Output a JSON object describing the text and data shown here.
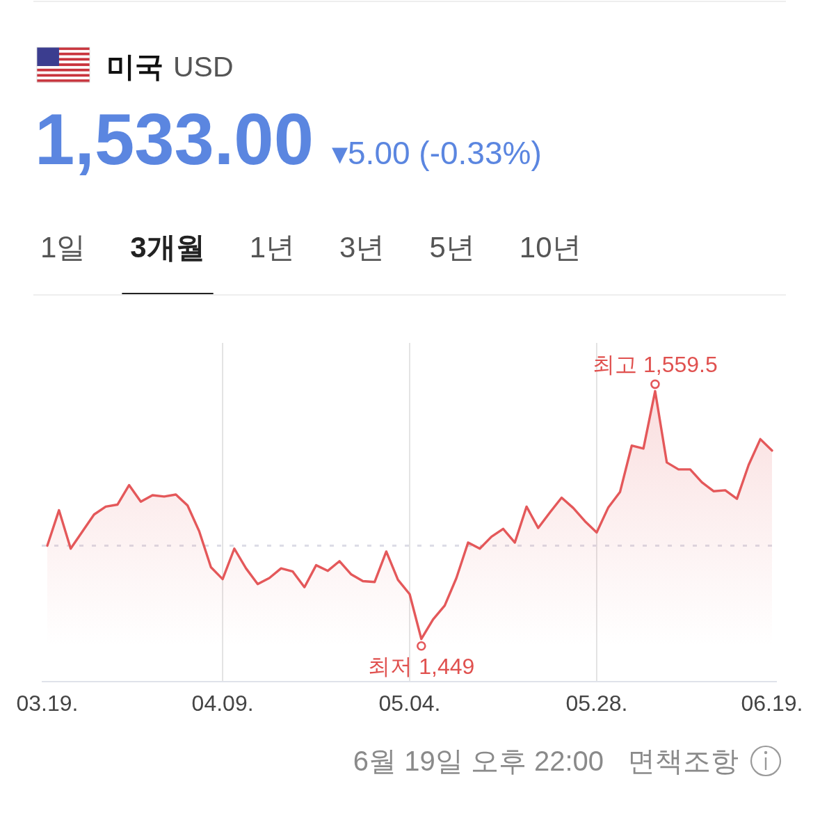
{
  "chart_data": {
    "type": "area",
    "title": "미국 USD",
    "subtitle": "1,533.00 ▾5.00 (-0.33%)",
    "categories": [
      "03.19.",
      null,
      null,
      null,
      null,
      null,
      null,
      null,
      null,
      null,
      null,
      null,
      null,
      null,
      null,
      "04.09.",
      null,
      null,
      null,
      null,
      null,
      null,
      null,
      null,
      null,
      null,
      null,
      null,
      null,
      null,
      null,
      "05.04.",
      null,
      null,
      null,
      null,
      null,
      null,
      null,
      null,
      null,
      null,
      null,
      null,
      null,
      null,
      null,
      "05.28.",
      null,
      null,
      null,
      null,
      null,
      null,
      null,
      null,
      null,
      null,
      null,
      null,
      null,
      null,
      "06.19."
    ],
    "values": [
      1490.6,
      1506.4,
      1489.3,
      1496.9,
      1504.5,
      1508.0,
      1508.9,
      1517.6,
      1510.2,
      1513.1,
      1512.5,
      1513.4,
      1508.5,
      1497.0,
      1481.0,
      1475.7,
      1489.3,
      1480.5,
      1473.5,
      1476.2,
      1480.5,
      1479.1,
      1472.1,
      1481.9,
      1479.4,
      1483.7,
      1477.8,
      1474.8,
      1474.4,
      1488.0,
      1475.4,
      1469.0,
      1449,
      1457.7,
      1463.9,
      1476.2,
      1492.0,
      1489.3,
      1494.6,
      1498.1,
      1492.0,
      1508.0,
      1498.5,
      1505.4,
      1512.0,
      1507.4,
      1501.5,
      1496.5,
      1507.7,
      1514.6,
      1535.2,
      1533.9,
      1559.5,
      1527.7,
      1524.6,
      1524.6,
      1518.9,
      1514.9,
      1515.3,
      1511.5,
      1526.6,
      1538.1,
      1533.0
    ],
    "value_labels": [
      null,
      null,
      null,
      null,
      null,
      null,
      null,
      null,
      null,
      null,
      null,
      null,
      null,
      null,
      null,
      null,
      null,
      null,
      null,
      null,
      null,
      null,
      null,
      null,
      null,
      null,
      null,
      null,
      null,
      null,
      null,
      null,
      "최저 1,449",
      null,
      null,
      null,
      null,
      null,
      null,
      null,
      null,
      null,
      null,
      null,
      null,
      null,
      null,
      null,
      null,
      null,
      null,
      null,
      "최고 1,559.5",
      null,
      null,
      null,
      null,
      null,
      null,
      null,
      null,
      null,
      null
    ],
    "color": "#e4585a",
    "ylim": [
      1430,
      1581
    ],
    "tick_labels": "x",
    "grid": "x",
    "ref_lines": [
      {
        "axis": "y",
        "value": 1490.6,
        "line_style": "dashed",
        "color": "#dcdce6"
      }
    ],
    "annotations": [
      "1일",
      "3개월",
      "1년",
      "3년",
      "5년",
      "10년",
      "6월 19일 오후 22:00",
      "면책조항"
    ]
  }
}
